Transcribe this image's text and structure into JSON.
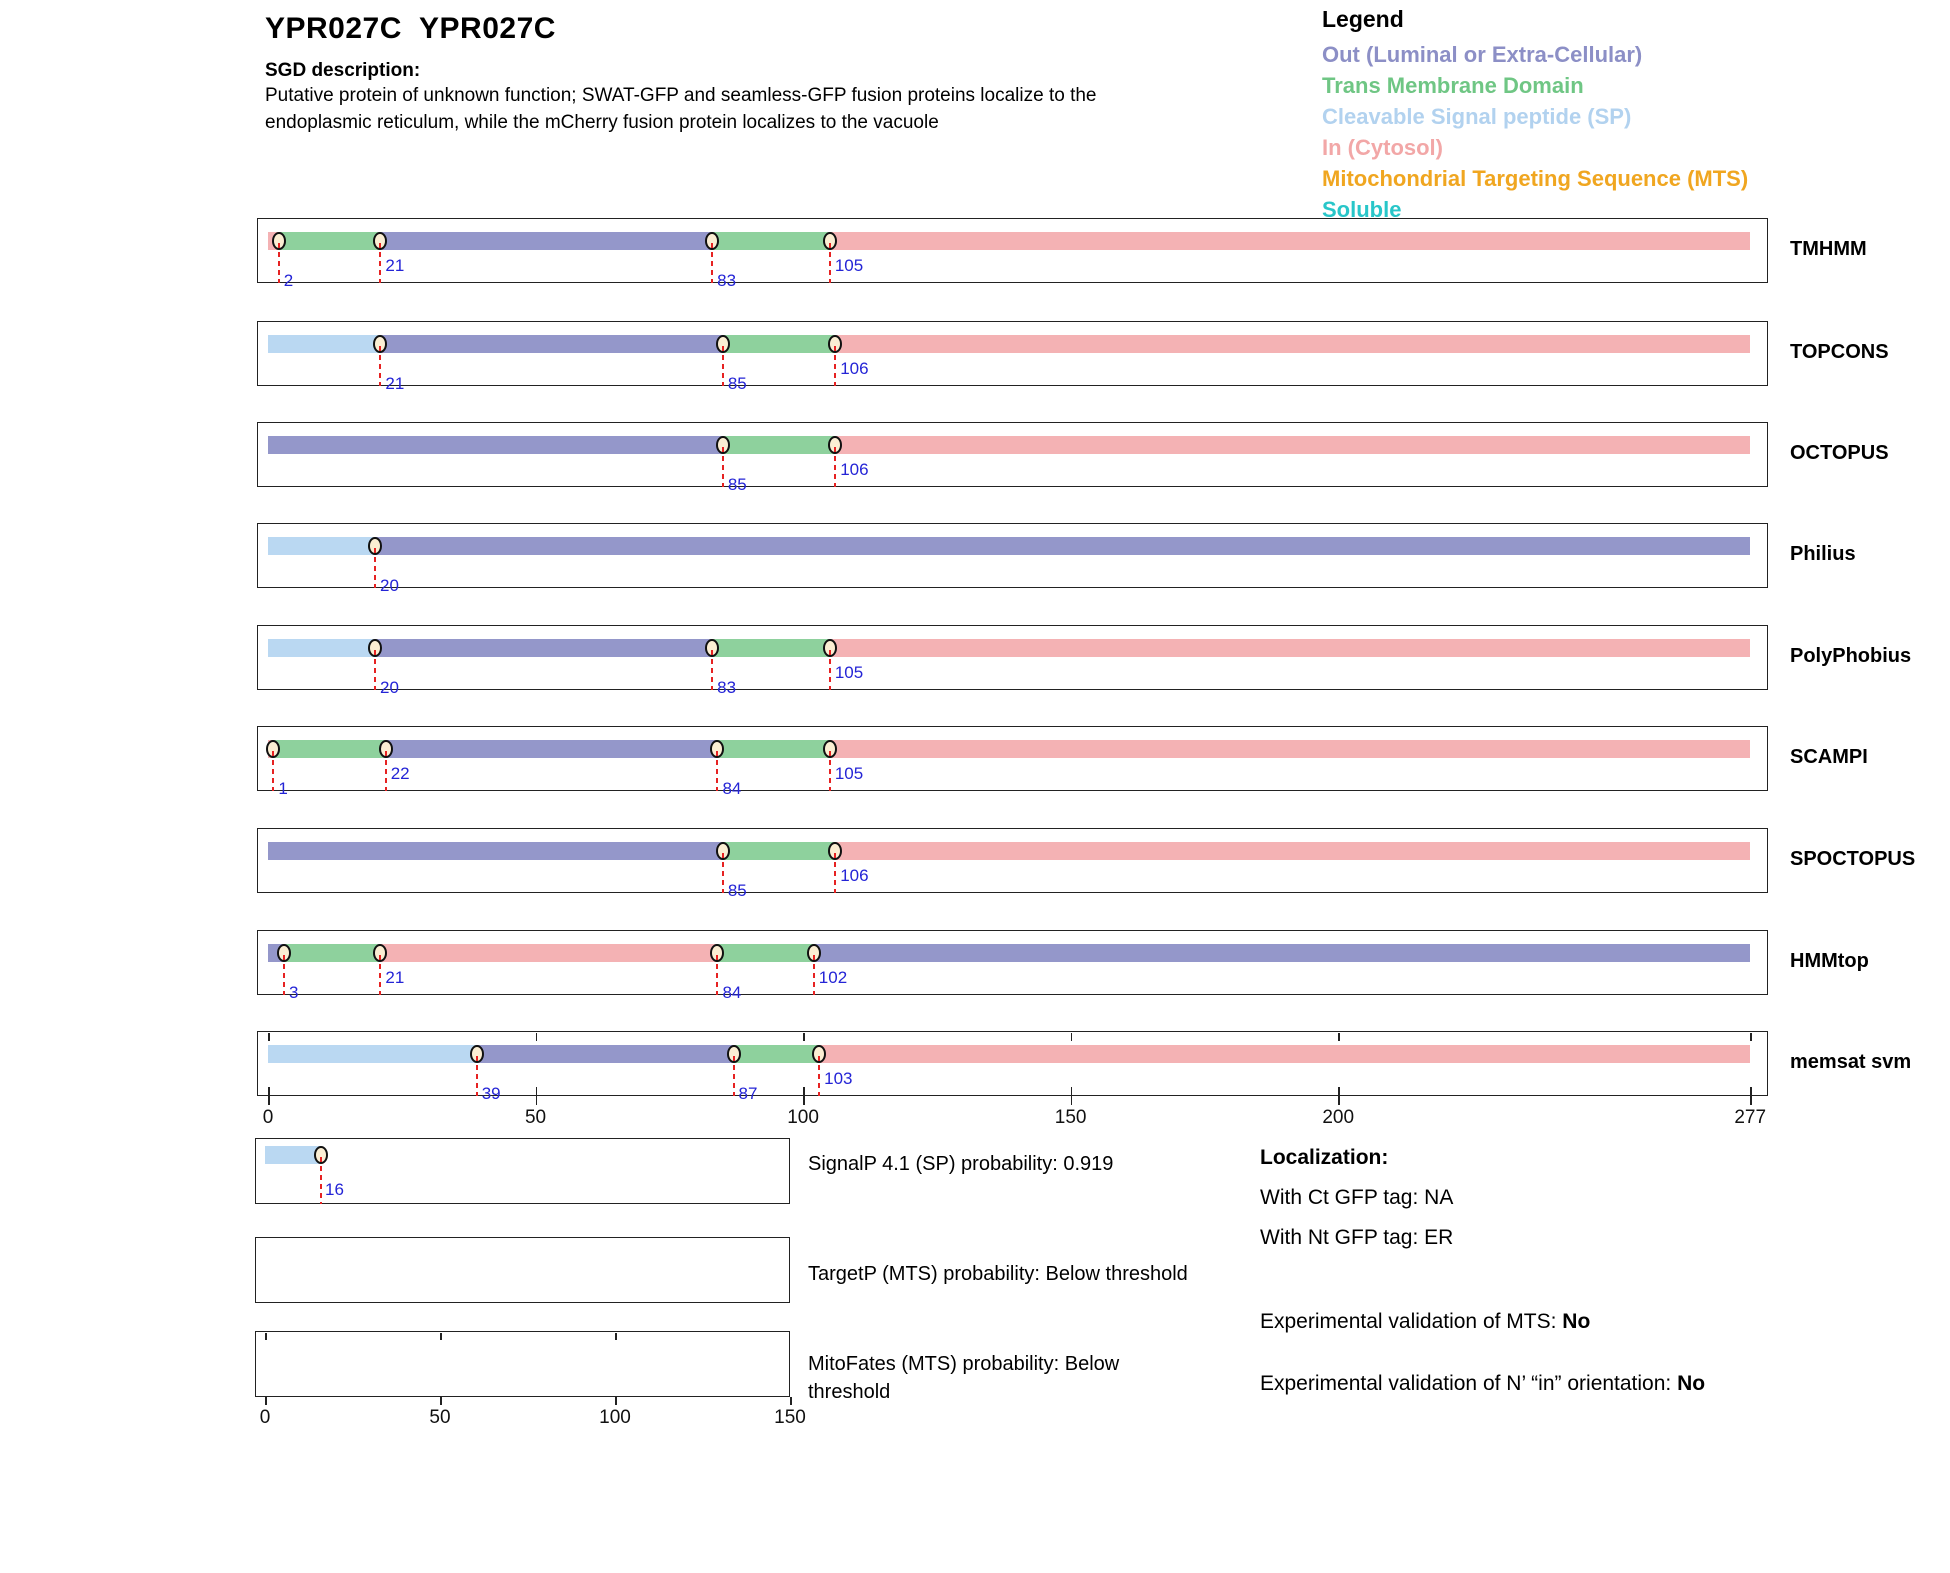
{
  "header": {
    "title": "YPR027C  YPR027C",
    "sgd_label": "SGD description:",
    "description_line1": "Putative protein of unknown function; SWAT-GFP and seamless-GFP fusion proteins localize to the",
    "description_line2": "endoplasmic reticulum, while the mCherry fusion protein localizes to the vacuole"
  },
  "legend": {
    "title": "Legend",
    "items": [
      {
        "key": "out",
        "label": "Out (Luminal or Extra-Cellular)",
        "color": "#8c8fc6"
      },
      {
        "key": "tm",
        "label": "Trans Membrane Domain",
        "color": "#6fc684"
      },
      {
        "key": "sp",
        "label": "Cleavable Signal peptide (SP)",
        "color": "#b2d2ef"
      },
      {
        "key": "in",
        "label": "In (Cytosol)",
        "color": "#f2a7a7"
      },
      {
        "key": "mts",
        "label": "Mitochondrial Targeting Sequence (MTS)",
        "color": "#f0a620"
      },
      {
        "key": "soluble",
        "label": "Soluble",
        "color": "#28c6c9"
      }
    ]
  },
  "chart_data": {
    "type": "segment-tracks",
    "x_range": [
      0,
      277
    ],
    "axis_ticks": [
      0,
      50,
      100,
      150,
      200,
      277
    ],
    "segment_colors": {
      "out": "#9497ca",
      "tm": "#8ed19d",
      "sp": "#bad8f2",
      "in": "#f4b2b4"
    },
    "marker_fill": "#fbeed3",
    "dash_color": "#e62222",
    "number_color": "#2424d6",
    "tracks": [
      {
        "name": "TMHMM",
        "segments": [
          {
            "from": 0,
            "to": 2,
            "type": "in"
          },
          {
            "from": 2,
            "to": 21,
            "type": "tm"
          },
          {
            "from": 21,
            "to": 83,
            "type": "out"
          },
          {
            "from": 83,
            "to": 105,
            "type": "tm"
          },
          {
            "from": 105,
            "to": 277,
            "type": "in"
          }
        ],
        "markers": [
          {
            "pos": 2,
            "lane": "low"
          },
          {
            "pos": 21,
            "lane": "high"
          },
          {
            "pos": 83,
            "lane": "low"
          },
          {
            "pos": 105,
            "lane": "high"
          }
        ]
      },
      {
        "name": "TOPCONS",
        "segments": [
          {
            "from": 0,
            "to": 21,
            "type": "sp"
          },
          {
            "from": 21,
            "to": 85,
            "type": "out"
          },
          {
            "from": 85,
            "to": 106,
            "type": "tm"
          },
          {
            "from": 106,
            "to": 277,
            "type": "in"
          }
        ],
        "markers": [
          {
            "pos": 21,
            "lane": "low"
          },
          {
            "pos": 85,
            "lane": "low"
          },
          {
            "pos": 106,
            "lane": "high"
          }
        ]
      },
      {
        "name": "OCTOPUS",
        "segments": [
          {
            "from": 0,
            "to": 85,
            "type": "out"
          },
          {
            "from": 85,
            "to": 106,
            "type": "tm"
          },
          {
            "from": 106,
            "to": 277,
            "type": "in"
          }
        ],
        "markers": [
          {
            "pos": 85,
            "lane": "low"
          },
          {
            "pos": 106,
            "lane": "high"
          }
        ]
      },
      {
        "name": "Philius",
        "segments": [
          {
            "from": 0,
            "to": 20,
            "type": "sp"
          },
          {
            "from": 20,
            "to": 277,
            "type": "out"
          }
        ],
        "markers": [
          {
            "pos": 20,
            "lane": "low"
          }
        ]
      },
      {
        "name": "PolyPhobius",
        "segments": [
          {
            "from": 0,
            "to": 20,
            "type": "sp"
          },
          {
            "from": 20,
            "to": 83,
            "type": "out"
          },
          {
            "from": 83,
            "to": 105,
            "type": "tm"
          },
          {
            "from": 105,
            "to": 277,
            "type": "in"
          }
        ],
        "markers": [
          {
            "pos": 20,
            "lane": "low"
          },
          {
            "pos": 83,
            "lane": "low"
          },
          {
            "pos": 105,
            "lane": "high"
          }
        ]
      },
      {
        "name": "SCAMPI",
        "segments": [
          {
            "from": 0,
            "to": 1,
            "type": "in"
          },
          {
            "from": 1,
            "to": 22,
            "type": "tm"
          },
          {
            "from": 22,
            "to": 84,
            "type": "out"
          },
          {
            "from": 84,
            "to": 105,
            "type": "tm"
          },
          {
            "from": 105,
            "to": 277,
            "type": "in"
          }
        ],
        "markers": [
          {
            "pos": 1,
            "lane": "low"
          },
          {
            "pos": 22,
            "lane": "high"
          },
          {
            "pos": 84,
            "lane": "low"
          },
          {
            "pos": 105,
            "lane": "high"
          }
        ]
      },
      {
        "name": "SPOCTOPUS",
        "segments": [
          {
            "from": 0,
            "to": 85,
            "type": "out"
          },
          {
            "from": 85,
            "to": 106,
            "type": "tm"
          },
          {
            "from": 106,
            "to": 277,
            "type": "in"
          }
        ],
        "markers": [
          {
            "pos": 85,
            "lane": "low"
          },
          {
            "pos": 106,
            "lane": "high"
          }
        ]
      },
      {
        "name": "HMMtop",
        "segments": [
          {
            "from": 0,
            "to": 3,
            "type": "out"
          },
          {
            "from": 3,
            "to": 21,
            "type": "tm"
          },
          {
            "from": 21,
            "to": 84,
            "type": "in"
          },
          {
            "from": 84,
            "to": 102,
            "type": "tm"
          },
          {
            "from": 102,
            "to": 277,
            "type": "out"
          }
        ],
        "markers": [
          {
            "pos": 3,
            "lane": "low"
          },
          {
            "pos": 21,
            "lane": "high"
          },
          {
            "pos": 84,
            "lane": "low"
          },
          {
            "pos": 102,
            "lane": "high"
          }
        ]
      },
      {
        "name": "memsat svm",
        "segments": [
          {
            "from": 0,
            "to": 39,
            "type": "sp"
          },
          {
            "from": 39,
            "to": 87,
            "type": "out"
          },
          {
            "from": 87,
            "to": 103,
            "type": "tm"
          },
          {
            "from": 103,
            "to": 277,
            "type": "in"
          }
        ],
        "markers": [
          {
            "pos": 39,
            "lane": "low"
          },
          {
            "pos": 87,
            "lane": "low"
          },
          {
            "pos": 103,
            "lane": "high"
          }
        ],
        "internal_ticks": [
          0,
          50,
          100,
          150,
          200,
          277
        ]
      }
    ],
    "sub_plots": [
      {
        "name": "SignalP",
        "label": "SignalP 4.1 (SP) probability: 0.919",
        "x_range": [
          0,
          150
        ],
        "segments": [
          {
            "from": 0,
            "to": 16,
            "type": "sp"
          }
        ],
        "markers": [
          {
            "pos": 16,
            "lane": "low"
          }
        ],
        "top_ticks": [],
        "axis_ticks": []
      },
      {
        "name": "TargetP",
        "label": "TargetP (MTS) probability: Below threshold",
        "x_range": [
          0,
          150
        ],
        "segments": [],
        "markers": [],
        "top_ticks": [],
        "axis_ticks": []
      },
      {
        "name": "MitoFates",
        "label": "MitoFates (MTS) probability: Below threshold",
        "x_range": [
          0,
          150
        ],
        "segments": [],
        "markers": [],
        "top_ticks": [
          0,
          50,
          100
        ],
        "axis_ticks": [
          0,
          50,
          100,
          150
        ]
      }
    ]
  },
  "info": {
    "localization_title": "Localization:",
    "ct_tag": "With Ct GFP tag: NA",
    "nt_tag": "With Nt GFP tag: ER",
    "mts_validation_prefix": "Experimental validation of MTS: ",
    "mts_validation_value": "No",
    "orientation_validation_prefix": "Experimental validation of N’ “in” orientation: ",
    "orientation_validation_value": "No"
  }
}
